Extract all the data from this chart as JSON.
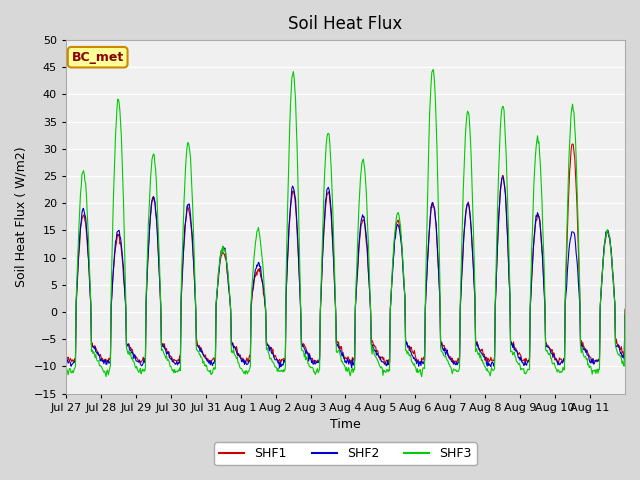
{
  "title": "Soil Heat Flux",
  "ylabel": "Soil Heat Flux ( W/m2)",
  "xlabel": "Time",
  "ylim": [
    -15,
    50
  ],
  "yticks": [
    -15,
    -10,
    -5,
    0,
    5,
    10,
    15,
    20,
    25,
    30,
    35,
    40,
    45,
    50
  ],
  "xtick_labels": [
    "Jul 27",
    "Jul 28",
    "Jul 29",
    "Jul 30",
    "Jul 31",
    "Aug 1",
    "Aug 2",
    "Aug 3",
    "Aug 4",
    "Aug 5",
    "Aug 6",
    "Aug 7",
    "Aug 8",
    "Aug 9",
    "Aug 10",
    "Aug 11"
  ],
  "shf1_color": "#cc0000",
  "shf2_color": "#0000cc",
  "shf3_color": "#00cc00",
  "annotation_text": "BC_met",
  "annotation_bg": "#ffff99",
  "annotation_border": "#cc8800",
  "legend_labels": [
    "SHF1",
    "SHF2",
    "SHF3"
  ],
  "n_days": 16,
  "pts_per_day": 48,
  "day_amps_shf1": [
    18,
    14,
    21,
    19,
    11,
    8,
    22,
    22,
    17,
    17,
    20,
    20,
    25,
    18,
    31,
    15
  ],
  "day_amps_shf2": [
    19,
    15,
    21,
    20,
    12,
    9,
    23,
    23,
    18,
    16,
    20,
    20,
    25,
    18,
    15,
    15
  ],
  "day_amps_shf3": [
    26,
    39,
    29,
    31,
    12,
    15,
    44,
    33,
    28,
    18,
    45,
    37,
    38,
    32,
    38,
    15
  ]
}
